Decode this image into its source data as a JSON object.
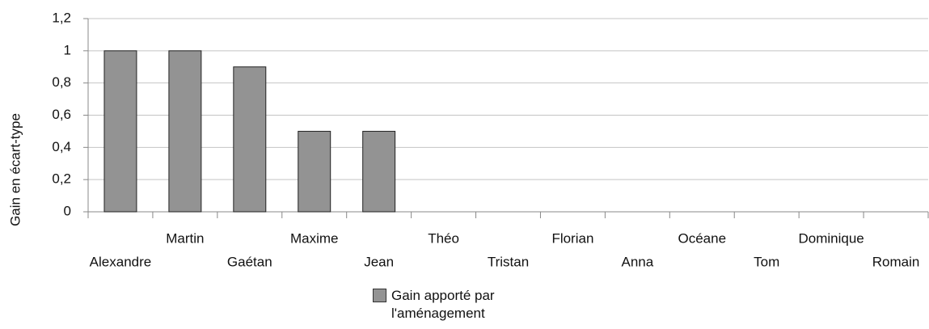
{
  "chart_data": {
    "type": "bar",
    "y_axis_label": "Gain en écart-type",
    "categories": [
      "Alexandre",
      "Martin",
      "Gaétan",
      "Maxime",
      "Jean",
      "Théo",
      "Tristan",
      "Florian",
      "Anna",
      "Océane",
      "Tom",
      "Dominique",
      "Romain"
    ],
    "series": [
      {
        "name": "Gain apporté par l'aménagement",
        "color": "#939393",
        "values": [
          1,
          1,
          0.9,
          0.5,
          0.5,
          0,
          0,
          0,
          0,
          0,
          0,
          0,
          0
        ]
      }
    ],
    "ylim": [
      0,
      1.2
    ],
    "yticks": [
      0,
      {
        "value": 0.2,
        "label": "0,2"
      },
      {
        "value": 0.4,
        "label": "0,4"
      },
      {
        "value": 0.6,
        "label": "0,6"
      },
      {
        "value": 0.8,
        "label": "0,8"
      },
      1,
      {
        "value": 1.2,
        "label": "1,2"
      }
    ],
    "grid": true,
    "legend": "bottom"
  }
}
